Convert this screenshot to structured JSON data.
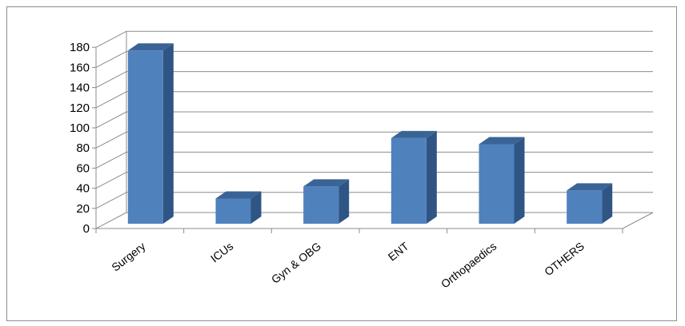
{
  "chart_data": {
    "type": "bar",
    "title": "",
    "xlabel": "",
    "ylabel": "",
    "categories": [
      "Surgery",
      "ICUs",
      "Gyn & OBG",
      "ENT",
      "Orthopaedics",
      "OTHERS"
    ],
    "values": [
      172,
      25,
      37,
      85,
      79,
      33
    ],
    "ylim": [
      0,
      180
    ],
    "yticks": [
      0,
      20,
      40,
      60,
      80,
      100,
      120,
      140,
      160,
      180
    ],
    "grid": true,
    "legend": "none",
    "style": "3d-column",
    "colors": {
      "bar_front": "#4f81bd",
      "bar_side": "#2f5585",
      "bar_top": "#3a6496",
      "gridline": "#8c8c8c"
    }
  }
}
